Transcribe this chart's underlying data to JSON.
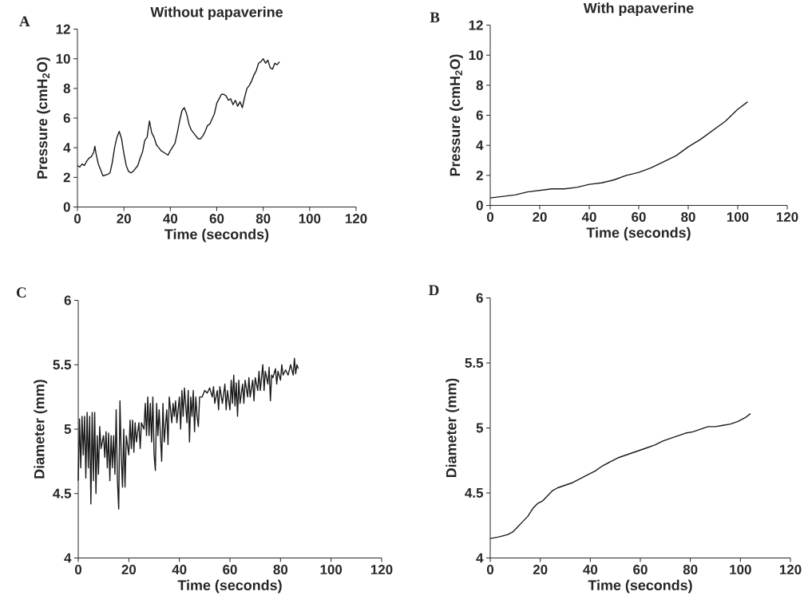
{
  "chart_data": [
    {
      "type": "line",
      "title": "Without papaverine",
      "xlabel": "Time (seconds)",
      "ylabel": "Pressure (cmH$_{2}$O)",
      "annotations": [
        "A"
      ],
      "color": "#1a1a1a",
      "xlim": [
        0,
        120
      ],
      "ylim": [
        0,
        12
      ],
      "xticks": [
        0,
        20,
        40,
        60,
        80,
        100,
        120
      ],
      "yticks": [
        0,
        2,
        4,
        6,
        8,
        10,
        12
      ],
      "x": [
        0,
        1,
        2,
        3,
        4,
        5,
        6,
        7,
        7.5,
        8,
        9,
        10,
        11,
        13,
        14,
        15,
        16,
        17,
        18,
        19,
        20,
        21,
        22,
        23,
        24,
        26,
        27,
        28,
        29,
        30,
        31,
        32,
        33,
        34,
        35,
        36,
        37,
        39,
        40,
        42,
        43,
        44,
        45,
        46,
        47,
        48,
        49,
        51,
        52,
        53,
        54,
        55,
        56,
        57,
        59,
        60,
        61,
        62,
        63,
        64,
        65,
        66,
        67,
        68,
        69,
        70,
        71,
        72,
        73,
        74,
        75,
        76,
        77,
        78,
        79,
        80,
        81,
        82,
        83,
        84,
        85,
        86,
        87
      ],
      "values": [
        2.8,
        2.7,
        2.9,
        2.8,
        3.1,
        3.3,
        3.4,
        3.7,
        4.1,
        3.6,
        2.9,
        2.5,
        2.1,
        2.2,
        2.3,
        3.0,
        4.0,
        4.7,
        5.1,
        4.6,
        3.6,
        2.8,
        2.4,
        2.3,
        2.4,
        2.8,
        3.3,
        3.7,
        4.5,
        4.7,
        5.8,
        5.0,
        4.7,
        4.2,
        4.0,
        3.8,
        3.7,
        3.5,
        3.8,
        4.3,
        5.0,
        5.8,
        6.5,
        6.7,
        6.3,
        5.6,
        5.2,
        4.8,
        4.6,
        4.6,
        4.8,
        5.1,
        5.5,
        5.6,
        6.3,
        7.0,
        7.3,
        7.6,
        7.6,
        7.5,
        7.2,
        7.3,
        6.9,
        7.2,
        6.8,
        7.1,
        6.7,
        7.4,
        8.0,
        8.2,
        8.5,
        8.9,
        9.2,
        9.7,
        9.8,
        10.0,
        9.7,
        9.9,
        9.4,
        9.3,
        9.7,
        9.6,
        9.8
      ]
    },
    {
      "type": "line",
      "title": "With papaverine",
      "xlabel": "Time (seconds)",
      "ylabel": "Pressure (cmH$_{2}$O)",
      "annotations": [
        "B"
      ],
      "color": "#1a1a1a",
      "xlim": [
        0,
        120
      ],
      "ylim": [
        0,
        12
      ],
      "xticks": [
        0,
        20,
        40,
        60,
        80,
        100,
        120
      ],
      "yticks": [
        0,
        2,
        4,
        6,
        8,
        10,
        12
      ],
      "x": [
        0,
        5,
        10,
        15,
        20,
        25,
        30,
        35,
        40,
        45,
        50,
        55,
        60,
        65,
        70,
        75,
        80,
        85,
        90,
        95,
        100,
        104
      ],
      "values": [
        0.5,
        0.6,
        0.7,
        0.9,
        1.0,
        1.1,
        1.1,
        1.2,
        1.4,
        1.5,
        1.7,
        2.0,
        2.2,
        2.5,
        2.9,
        3.3,
        3.9,
        4.4,
        5.0,
        5.6,
        6.4,
        6.9
      ]
    },
    {
      "type": "line",
      "xlabel": "Time (seconds)",
      "ylabel": "Diameter (mm)",
      "annotations": [
        "C"
      ],
      "color": "#1a1a1a",
      "xlim": [
        0,
        120
      ],
      "ylim": [
        4,
        6
      ],
      "xticks": [
        0,
        20,
        40,
        60,
        80,
        100,
        120
      ],
      "yticks": [
        4,
        4.5,
        5,
        5.5,
        6
      ],
      "x": [
        0,
        0.5,
        1,
        1.5,
        2,
        2.5,
        3,
        3.5,
        4,
        4.5,
        5,
        5.5,
        6,
        6.5,
        7,
        7.5,
        8,
        8.5,
        9,
        10,
        10.5,
        11,
        11.5,
        12,
        12.5,
        13,
        13.5,
        14,
        14.5,
        15,
        15.5,
        16,
        16.5,
        17,
        17.5,
        18,
        18.5,
        19,
        20,
        20.5,
        21,
        21.5,
        22,
        22.5,
        23,
        24,
        24.5,
        25,
        26,
        26.5,
        27,
        27.5,
        28,
        28.5,
        29,
        29.5,
        30,
        30.5,
        31,
        31.5,
        32,
        33,
        33.5,
        34,
        35,
        35.5,
        36,
        37,
        37.5,
        38,
        38.5,
        39,
        40,
        40.5,
        41,
        41.5,
        42,
        43,
        43.5,
        44,
        44.5,
        45,
        45.5,
        46,
        46.5,
        47,
        47.5,
        48,
        49,
        50,
        51,
        52,
        53,
        53.5,
        54,
        55,
        55.5,
        56,
        57,
        58,
        58.5,
        59,
        60,
        60.5,
        61,
        61.5,
        62,
        62.5,
        63,
        63.5,
        64,
        65,
        65.5,
        66,
        67,
        67.5,
        68,
        69,
        69.5,
        70,
        71,
        71.5,
        72,
        73,
        73.5,
        74,
        75,
        75.5,
        76,
        76.5,
        77,
        78,
        78.5,
        79,
        80,
        80.5,
        81,
        82,
        83,
        84,
        85,
        85.5,
        86,
        86.5,
        87
      ],
      "values": [
        4.6,
        5.08,
        4.7,
        5.1,
        4.8,
        5.1,
        4.62,
        5.13,
        4.7,
        5.1,
        4.42,
        5.13,
        4.6,
        5.13,
        4.5,
        4.95,
        4.65,
        5.02,
        4.85,
        4.95,
        4.78,
        4.98,
        4.7,
        4.97,
        4.6,
        4.95,
        4.7,
        4.95,
        4.65,
        5.15,
        4.6,
        4.38,
        5.22,
        4.8,
        4.55,
        5.0,
        4.55,
        4.95,
        4.8,
        5.07,
        4.85,
        5.07,
        4.82,
        5.05,
        4.9,
        5.05,
        4.85,
        5.05,
        5.0,
        5.2,
        4.95,
        5.25,
        4.95,
        5.2,
        4.9,
        5.25,
        4.8,
        4.68,
        5.2,
        4.95,
        5.15,
        4.75,
        5.2,
        4.9,
        5.15,
        4.88,
        5.25,
        5.05,
        5.2,
        5.1,
        5.22,
        5.05,
        5.25,
        5.0,
        5.3,
        5.1,
        5.32,
        5.05,
        5.3,
        4.9,
        5.25,
        5.1,
        5.3,
        4.98,
        5.25,
        5.1,
        5.02,
        5.25,
        5.25,
        5.3,
        5.28,
        5.32,
        5.25,
        5.33,
        5.2,
        5.3,
        5.15,
        5.33,
        5.2,
        5.35,
        5.15,
        5.3,
        5.15,
        5.38,
        5.2,
        5.42,
        5.18,
        5.36,
        5.1,
        5.38,
        5.2,
        5.35,
        5.2,
        5.38,
        5.25,
        5.4,
        5.25,
        5.38,
        5.22,
        5.4,
        5.3,
        5.45,
        5.3,
        5.5,
        5.3,
        5.45,
        5.35,
        5.48,
        5.22,
        5.42,
        5.4,
        5.47,
        5.35,
        5.45,
        5.38,
        5.5,
        5.42,
        5.46,
        5.42,
        5.5,
        5.42,
        5.55,
        5.43,
        5.5,
        5.47
      ]
    },
    {
      "type": "line",
      "xlabel": "Time (seconds)",
      "ylabel": "Diameter (mm)",
      "annotations": [
        "D"
      ],
      "color": "#1a1a1a",
      "xlim": [
        0,
        120
      ],
      "ylim": [
        4,
        6
      ],
      "xticks": [
        0,
        20,
        40,
        60,
        80,
        100,
        120
      ],
      "yticks": [
        4,
        4.5,
        5,
        5.5,
        6
      ],
      "x": [
        0,
        3,
        5,
        7,
        9,
        11,
        13,
        15,
        17,
        19,
        21,
        23,
        25,
        27,
        30,
        33,
        36,
        39,
        42,
        45,
        48,
        51,
        54,
        57,
        60,
        63,
        66,
        69,
        72,
        75,
        78,
        81,
        84,
        87,
        90,
        93,
        96,
        99,
        102,
        104
      ],
      "values": [
        4.15,
        4.16,
        4.17,
        4.18,
        4.2,
        4.24,
        4.28,
        4.32,
        4.38,
        4.42,
        4.44,
        4.48,
        4.52,
        4.54,
        4.56,
        4.58,
        4.61,
        4.64,
        4.67,
        4.71,
        4.74,
        4.77,
        4.79,
        4.81,
        4.83,
        4.85,
        4.87,
        4.9,
        4.92,
        4.94,
        4.96,
        4.97,
        4.99,
        5.01,
        5.01,
        5.02,
        5.03,
        5.05,
        5.08,
        5.11
      ]
    }
  ]
}
